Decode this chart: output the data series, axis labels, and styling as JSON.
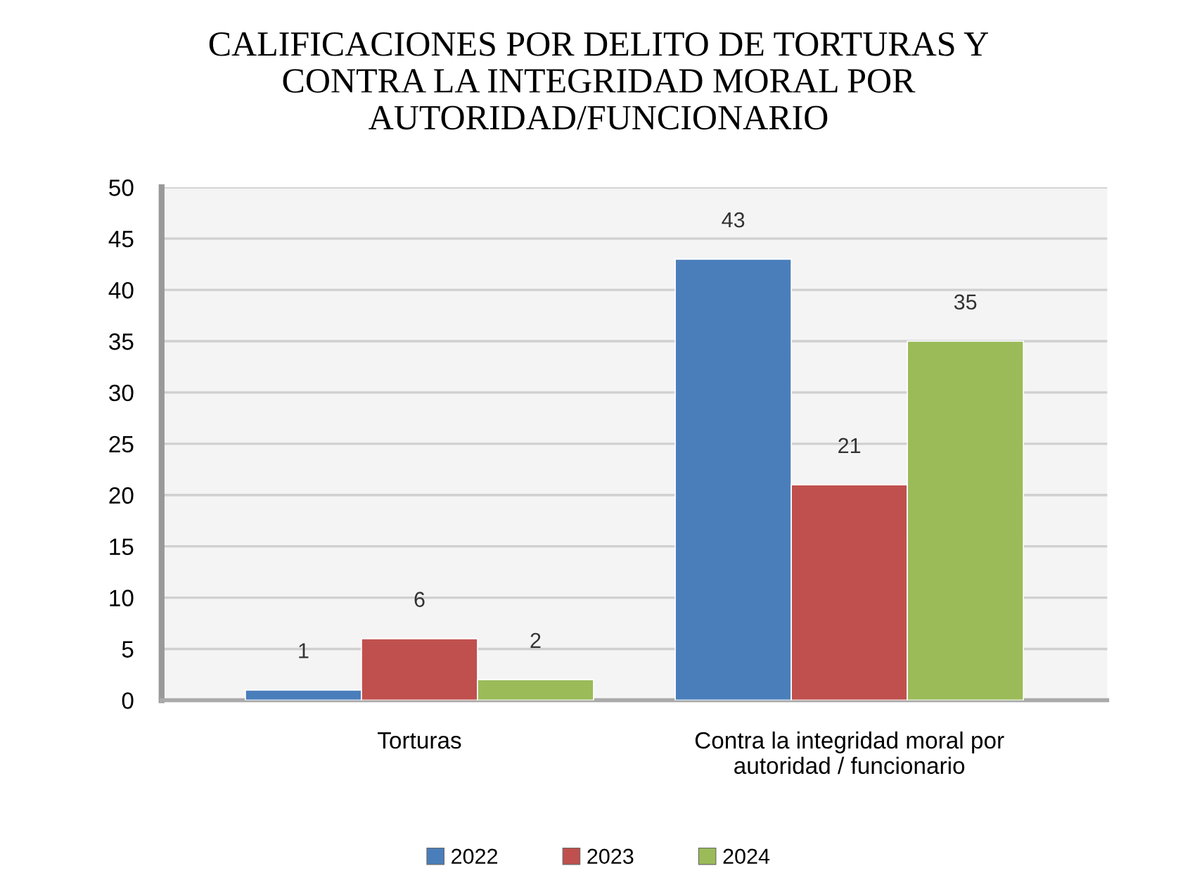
{
  "chart_data": {
    "type": "bar",
    "title": "CALIFICACIONES POR DELITO DE TORTURAS Y\nCONTRA LA INTEGRIDAD MORAL POR\nAUTORIDAD/FUNCIONARIO",
    "categories": [
      "Torturas",
      "Contra la integridad moral por\nautoridad / funcionario"
    ],
    "series": [
      {
        "name": "2022",
        "color": "#4a7ebb",
        "values": [
          1,
          43
        ]
      },
      {
        "name": "2023",
        "color": "#c0504d",
        "values": [
          6,
          21
        ]
      },
      {
        "name": "2024",
        "color": "#9bbb59",
        "values": [
          2,
          35
        ]
      }
    ],
    "ylim": [
      0,
      50
    ],
    "yticks": [
      0,
      5,
      10,
      15,
      20,
      25,
      30,
      35,
      40,
      45,
      50
    ],
    "grid": "y",
    "legend": "bottom",
    "data_labels": true
  }
}
